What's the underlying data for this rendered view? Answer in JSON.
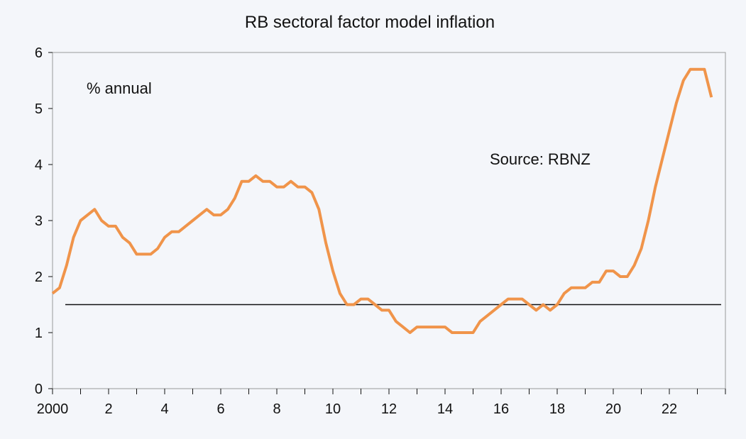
{
  "chart_data": {
    "type": "line",
    "title": "RB sectoral factor model inflation",
    "xlabel": "",
    "ylabel": "",
    "ylim": [
      0,
      6
    ],
    "yticks": [
      0,
      1,
      2,
      3,
      4,
      5,
      6
    ],
    "xlim": [
      2000,
      2024
    ],
    "xticks": [
      {
        "value": 2000,
        "label": "2000"
      },
      {
        "value": 2002,
        "label": "2"
      },
      {
        "value": 2004,
        "label": "4"
      },
      {
        "value": 2006,
        "label": "6"
      },
      {
        "value": 2008,
        "label": "8"
      },
      {
        "value": 2010,
        "label": "10"
      },
      {
        "value": 2012,
        "label": "12"
      },
      {
        "value": 2014,
        "label": "14"
      },
      {
        "value": 2016,
        "label": "16"
      },
      {
        "value": 2018,
        "label": "18"
      },
      {
        "value": 2020,
        "label": "20"
      },
      {
        "value": 2022,
        "label": "22"
      }
    ],
    "annotations": {
      "units": "% annual",
      "source": "Source: RBNZ"
    },
    "reference_line": {
      "value": 1.5
    },
    "series": [
      {
        "name": "Sectoral factor model inflation",
        "color": "#f0944a",
        "x": [
          2000.0,
          2000.25,
          2000.5,
          2000.75,
          2001.0,
          2001.25,
          2001.5,
          2001.75,
          2002.0,
          2002.25,
          2002.5,
          2002.75,
          2003.0,
          2003.25,
          2003.5,
          2003.75,
          2004.0,
          2004.25,
          2004.5,
          2004.75,
          2005.0,
          2005.25,
          2005.5,
          2005.75,
          2006.0,
          2006.25,
          2006.5,
          2006.75,
          2007.0,
          2007.25,
          2007.5,
          2007.75,
          2008.0,
          2008.25,
          2008.5,
          2008.75,
          2009.0,
          2009.25,
          2009.5,
          2009.75,
          2010.0,
          2010.25,
          2010.5,
          2010.75,
          2011.0,
          2011.25,
          2011.5,
          2011.75,
          2012.0,
          2012.25,
          2012.5,
          2012.75,
          2013.0,
          2013.25,
          2013.5,
          2013.75,
          2014.0,
          2014.25,
          2014.5,
          2014.75,
          2015.0,
          2015.25,
          2015.5,
          2015.75,
          2016.0,
          2016.25,
          2016.5,
          2016.75,
          2017.0,
          2017.25,
          2017.5,
          2017.75,
          2018.0,
          2018.25,
          2018.5,
          2018.75,
          2019.0,
          2019.25,
          2019.5,
          2019.75,
          2020.0,
          2020.25,
          2020.5,
          2020.75,
          2021.0,
          2021.25,
          2021.5,
          2021.75,
          2022.0,
          2022.25,
          2022.5,
          2022.75,
          2023.0,
          2023.25,
          2023.5
        ],
        "values": [
          1.7,
          1.8,
          2.2,
          2.7,
          3.0,
          3.1,
          3.2,
          3.0,
          2.9,
          2.9,
          2.7,
          2.6,
          2.4,
          2.4,
          2.4,
          2.5,
          2.7,
          2.8,
          2.8,
          2.9,
          3.0,
          3.1,
          3.2,
          3.1,
          3.1,
          3.2,
          3.4,
          3.7,
          3.7,
          3.8,
          3.7,
          3.7,
          3.6,
          3.6,
          3.7,
          3.6,
          3.6,
          3.5,
          3.2,
          2.6,
          2.1,
          1.7,
          1.5,
          1.5,
          1.6,
          1.6,
          1.5,
          1.4,
          1.4,
          1.2,
          1.1,
          1.0,
          1.1,
          1.1,
          1.1,
          1.1,
          1.1,
          1.0,
          1.0,
          1.0,
          1.0,
          1.2,
          1.3,
          1.4,
          1.5,
          1.6,
          1.6,
          1.6,
          1.5,
          1.4,
          1.5,
          1.4,
          1.5,
          1.7,
          1.8,
          1.8,
          1.8,
          1.9,
          1.9,
          2.1,
          2.1,
          2.0,
          2.0,
          2.2,
          2.5,
          3.0,
          3.6,
          4.1,
          4.6,
          5.1,
          5.5,
          5.7,
          5.7,
          5.7,
          5.2
        ]
      }
    ]
  }
}
